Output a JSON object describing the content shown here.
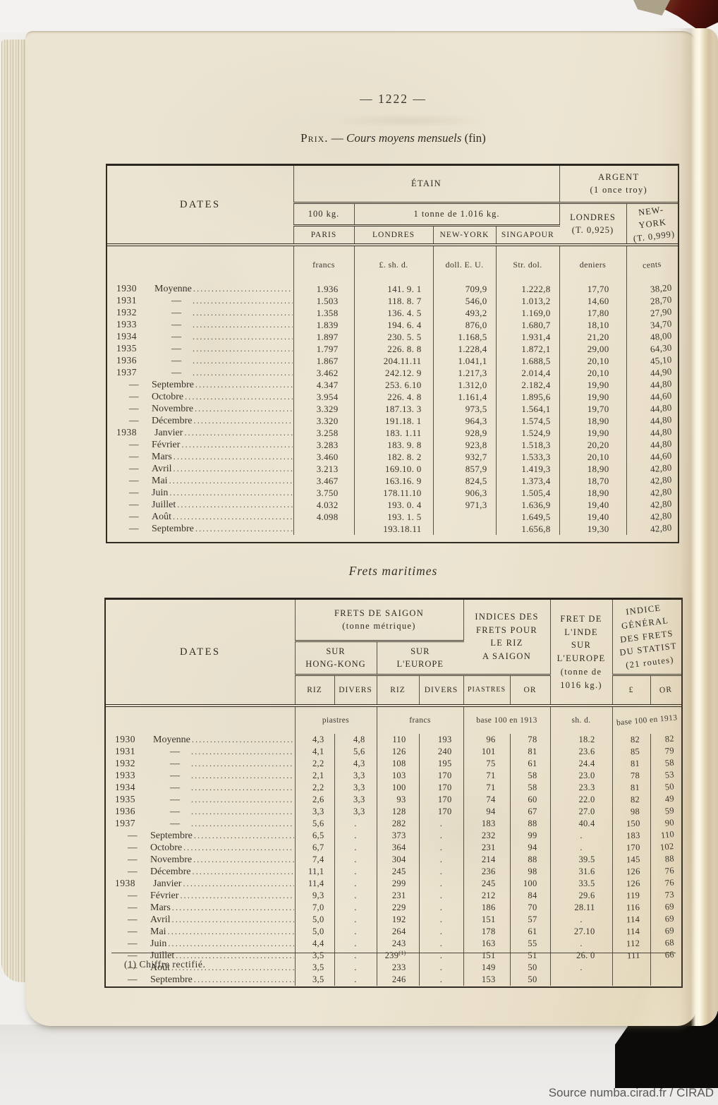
{
  "page": {
    "number": "— 1222 —"
  },
  "title": {
    "lead": "Prix.",
    "dash": "—",
    "main": "Cours moyens mensuels",
    "tail": "(fin)"
  },
  "section2": "Frets maritimes",
  "footnote": "(1) Chiffre rectifié.",
  "attribution": "Source numba.cirad.fr / CIRAD",
  "table1": {
    "h": {
      "dates": "DATES",
      "etain": "ÉTAIN",
      "argent": "ARGENT\n(1 once troy)",
      "kg": "100 kg.",
      "tonne": "1 tonne de 1.016 kg.",
      "paris": "PARIS",
      "londres": "LONDRES",
      "newyork": "NEW-YORK",
      "singapour": "SINGAPOUR",
      "arg_lond": "LONDRES\n(T. 0,925)",
      "arg_ny": "NEW-YORK\n(T. 0,999)"
    },
    "u": {
      "francs": "francs",
      "lsd": "£. sh. d.",
      "doll": "doll. E. U.",
      "str": "Str. dol.",
      "den": "deniers",
      "cents": "cents"
    },
    "rows": [
      {
        "y": "1930",
        "n": "Moyenne",
        "paris": "1.936",
        "lond": "141. 9. 1",
        "ny": "709,9",
        "sing": "1.222,8",
        "den": "17,70",
        "cents": "38,20"
      },
      {
        "y": "1931",
        "n": "—",
        "paris": "1.503",
        "lond": "118. 8. 7",
        "ny": "546,0",
        "sing": "1.013,2",
        "den": "14,60",
        "cents": "28,70"
      },
      {
        "y": "1932",
        "n": "—",
        "paris": "1.358",
        "lond": "136. 4. 5",
        "ny": "493,2",
        "sing": "1.169,0",
        "den": "17,80",
        "cents": "27,90"
      },
      {
        "y": "1933",
        "n": "—",
        "paris": "1.839",
        "lond": "194. 6. 4",
        "ny": "876,0",
        "sing": "1.680,7",
        "den": "18,10",
        "cents": "34,70"
      },
      {
        "y": "1934",
        "n": "—",
        "paris": "1.897",
        "lond": "230. 5. 5",
        "ny": "1.168,5",
        "sing": "1.931,4",
        "den": "21,20",
        "cents": "48,00"
      },
      {
        "y": "1935",
        "n": "—",
        "paris": "1.797",
        "lond": "226. 8. 8",
        "ny": "1.228,4",
        "sing": "1.872,1",
        "den": "29,00",
        "cents": "64,30"
      },
      {
        "y": "1936",
        "n": "—",
        "paris": "1.867",
        "lond": "204.11.11",
        "ny": "1.041,1",
        "sing": "1.688,5",
        "den": "20,10",
        "cents": "45,10"
      },
      {
        "y": "1937",
        "n": "—",
        "paris": "3.462",
        "lond": "242.12. 9",
        "ny": "1.217,3",
        "sing": "2.014,4",
        "den": "20,10",
        "cents": "44,90"
      },
      {
        "y": "—",
        "n": "Septembre",
        "paris": "4.347",
        "lond": "253. 6.10",
        "ny": "1.312,0",
        "sing": "2.182,4",
        "den": "19,90",
        "cents": "44,80"
      },
      {
        "y": "—",
        "n": "Octobre",
        "paris": "3.954",
        "lond": "226. 4. 8",
        "ny": "1.161,4",
        "sing": "1.895,6",
        "den": "19,90",
        "cents": "44,60"
      },
      {
        "y": "—",
        "n": "Novembre",
        "paris": "3.329",
        "lond": "187.13. 3",
        "ny": "973,5",
        "sing": "1.564,1",
        "den": "19,70",
        "cents": "44,80"
      },
      {
        "y": "—",
        "n": "Décembre",
        "paris": "3.320",
        "lond": "191.18. 1",
        "ny": "964,3",
        "sing": "1.574,5",
        "den": "18,90",
        "cents": "44,80"
      },
      {
        "y": "1938",
        "n": "Janvier",
        "paris": "3.258",
        "lond": "183. 1.11",
        "ny": "928,9",
        "sing": "1.524,9",
        "den": "19,90",
        "cents": "44,80"
      },
      {
        "y": "—",
        "n": "Février",
        "paris": "3.283",
        "lond": "183. 9. 8",
        "ny": "923,8",
        "sing": "1.518,3",
        "den": "20,20",
        "cents": "44,80"
      },
      {
        "y": "—",
        "n": "Mars",
        "paris": "3.460",
        "lond": "182. 8. 2",
        "ny": "932,7",
        "sing": "1.533,3",
        "den": "20,10",
        "cents": "44,60"
      },
      {
        "y": "—",
        "n": "Avril",
        "paris": "3.213",
        "lond": "169.10. 0",
        "ny": "857,9",
        "sing": "1.419,3",
        "den": "18,90",
        "cents": "42,80"
      },
      {
        "y": "—",
        "n": "Mai",
        "paris": "3.467",
        "lond": "163.16. 9",
        "ny": "824,5",
        "sing": "1.373,4",
        "den": "18,70",
        "cents": "42,80"
      },
      {
        "y": "—",
        "n": "Juin",
        "paris": "3.750",
        "lond": "178.11.10",
        "ny": "906,3",
        "sing": "1.505,4",
        "den": "18,90",
        "cents": "42,80"
      },
      {
        "y": "—",
        "n": "Juillet",
        "paris": "4.032",
        "lond": "193. 0. 4",
        "ny": "971,3",
        "sing": "1.636,9",
        "den": "19,40",
        "cents": "42,80"
      },
      {
        "y": "—",
        "n": "Août",
        "paris": "4.098",
        "lond": "193. 1. 5",
        "ny": "",
        "sing": "1.649,5",
        "den": "19,40",
        "cents": "42,80"
      },
      {
        "y": "—",
        "n": "Septembre",
        "paris": "",
        "lond": "193.18.11",
        "ny": "",
        "sing": "1.656,8",
        "den": "19,30",
        "cents": "42,80"
      }
    ]
  },
  "table2": {
    "h": {
      "dates": "DATES",
      "saigon": "FRETS DE SAIGON\n(tonne métrique)",
      "indices": "INDICES DES\nFRETS POUR\nLE RIZ\nA SAIGON",
      "inde": "FRET DE\nL'INDE\nSUR\nL'EUROPE\n(tonne de\n1016 kg.)",
      "gen": "INDICE\nGÉNÉRAL\nDES FRETS\nDU STATIST\n(21 routes)",
      "hk": "SUR\nHONG-KONG",
      "eu": "SUR\nL'EUROPE",
      "riz": "RIZ",
      "divers": "DIVERS",
      "piastres": "PIASTRES",
      "or": "OR",
      "livre": "£",
      "or2": "OR"
    },
    "u": {
      "piastres": "piastres",
      "francs": "francs",
      "base": "base 100 en 1913",
      "shd": "sh. d.",
      "base2": "base 100 en 1913"
    },
    "rows": [
      {
        "y": "1930",
        "n": "Moyenne",
        "hk_riz": "4,3",
        "hk_div": "4,8",
        "eu_riz": "110",
        "eu_div": "193",
        "pia": "96",
        "or_riz": "78",
        "inde": "18.2",
        "liv": "82",
        "or_gen": "82"
      },
      {
        "y": "1931",
        "n": "—",
        "hk_riz": "4,1",
        "hk_div": "5,6",
        "eu_riz": "126",
        "eu_div": "240",
        "pia": "101",
        "or_riz": "81",
        "inde": "23.6",
        "liv": "85",
        "or_gen": "79"
      },
      {
        "y": "1932",
        "n": "—",
        "hk_riz": "2,2",
        "hk_div": "4,3",
        "eu_riz": "108",
        "eu_div": "195",
        "pia": "75",
        "or_riz": "61",
        "inde": "24.4",
        "liv": "81",
        "or_gen": "58"
      },
      {
        "y": "1933",
        "n": "—",
        "hk_riz": "2,1",
        "hk_div": "3,3",
        "eu_riz": "103",
        "eu_div": "170",
        "pia": "71",
        "or_riz": "58",
        "inde": "23.0",
        "liv": "78",
        "or_gen": "53"
      },
      {
        "y": "1934",
        "n": "—",
        "hk_riz": "2,2",
        "hk_div": "3,3",
        "eu_riz": "100",
        "eu_div": "170",
        "pia": "71",
        "or_riz": "58",
        "inde": "23.3",
        "liv": "81",
        "or_gen": "50"
      },
      {
        "y": "1935",
        "n": "—",
        "hk_riz": "2,6",
        "hk_div": "3,3",
        "eu_riz": "93",
        "eu_div": "170",
        "pia": "74",
        "or_riz": "60",
        "inde": "22.0",
        "liv": "82",
        "or_gen": "49"
      },
      {
        "y": "1936",
        "n": "—",
        "hk_riz": "3,3",
        "hk_div": "3,3",
        "eu_riz": "128",
        "eu_div": "170",
        "pia": "94",
        "or_riz": "67",
        "inde": "27.0",
        "liv": "98",
        "or_gen": "59"
      },
      {
        "y": "1937",
        "n": "—",
        "hk_riz": "5,6",
        "hk_div": ".",
        "eu_riz": "282",
        "eu_div": ".",
        "pia": "183",
        "or_riz": "88",
        "inde": "40.4",
        "liv": "150",
        "or_gen": "90"
      },
      {
        "y": "—",
        "n": "Septembre",
        "hk_riz": "6,5",
        "hk_div": ".",
        "eu_riz": "373",
        "eu_div": ".",
        "pia": "232",
        "or_riz": "99",
        "inde": ".",
        "liv": "183",
        "or_gen": "110"
      },
      {
        "y": "—",
        "n": "Octobre",
        "hk_riz": "6,7",
        "hk_div": ".",
        "eu_riz": "364",
        "eu_div": ".",
        "pia": "231",
        "or_riz": "94",
        "inde": ".",
        "liv": "170",
        "or_gen": "102"
      },
      {
        "y": "—",
        "n": "Novembre",
        "hk_riz": "7,4",
        "hk_div": ".",
        "eu_riz": "304",
        "eu_div": ".",
        "pia": "214",
        "or_riz": "88",
        "inde": "39.5",
        "liv": "145",
        "or_gen": "88"
      },
      {
        "y": "—",
        "n": "Décembre",
        "hk_riz": "11,1",
        "hk_div": ".",
        "eu_riz": "245",
        "eu_div": ".",
        "pia": "236",
        "or_riz": "98",
        "inde": "31.6",
        "liv": "126",
        "or_gen": "76"
      },
      {
        "y": "1938",
        "n": "Janvier",
        "hk_riz": "11,4",
        "hk_div": ".",
        "eu_riz": "299",
        "eu_div": ".",
        "pia": "245",
        "or_riz": "100",
        "inde": "33.5",
        "liv": "126",
        "or_gen": "76"
      },
      {
        "y": "—",
        "n": "Février",
        "hk_riz": "9,3",
        "hk_div": ".",
        "eu_riz": "231",
        "eu_div": ".",
        "pia": "212",
        "or_riz": "84",
        "inde": "29.6",
        "liv": "119",
        "or_gen": "73"
      },
      {
        "y": "—",
        "n": "Mars",
        "hk_riz": "7,0",
        "hk_div": ".",
        "eu_riz": "229",
        "eu_div": ".",
        "pia": "186",
        "or_riz": "70",
        "inde": "28.11",
        "liv": "116",
        "or_gen": "69"
      },
      {
        "y": "—",
        "n": "Avril",
        "hk_riz": "5,0",
        "hk_div": ".",
        "eu_riz": "192",
        "eu_div": ".",
        "pia": "151",
        "or_riz": "57",
        "inde": ".",
        "liv": "114",
        "or_gen": "69"
      },
      {
        "y": "—",
        "n": "Mai",
        "hk_riz": "5,0",
        "hk_div": ".",
        "eu_riz": "264",
        "eu_div": ".",
        "pia": "178",
        "or_riz": "61",
        "inde": "27.10",
        "liv": "114",
        "or_gen": "69"
      },
      {
        "y": "—",
        "n": "Juin",
        "hk_riz": "4,4",
        "hk_div": ".",
        "eu_riz": "243",
        "eu_div": ".",
        "pia": "163",
        "or_riz": "55",
        "inde": ".",
        "liv": "112",
        "or_gen": "68"
      },
      {
        "y": "—",
        "n": "Juillet",
        "hk_riz": "3,5",
        "hk_div": ".",
        "eu_riz": "239(1)",
        "eu_div": ".",
        "pia": "151",
        "or_riz": "51",
        "inde": "26. 0",
        "liv": "111",
        "or_gen": "66"
      },
      {
        "y": "—",
        "n": "Août",
        "hk_riz": "3,5",
        "hk_div": ".",
        "eu_riz": "233",
        "eu_div": ".",
        "pia": "149",
        "or_riz": "50",
        "inde": ".",
        "liv": "",
        "or_gen": ""
      },
      {
        "y": "—",
        "n": "Septembre",
        "hk_riz": "3,5",
        "hk_div": ".",
        "eu_riz": "246",
        "eu_div": ".",
        "pia": "153",
        "or_riz": "50",
        "inde": "",
        "liv": "",
        "or_gen": ""
      }
    ]
  }
}
